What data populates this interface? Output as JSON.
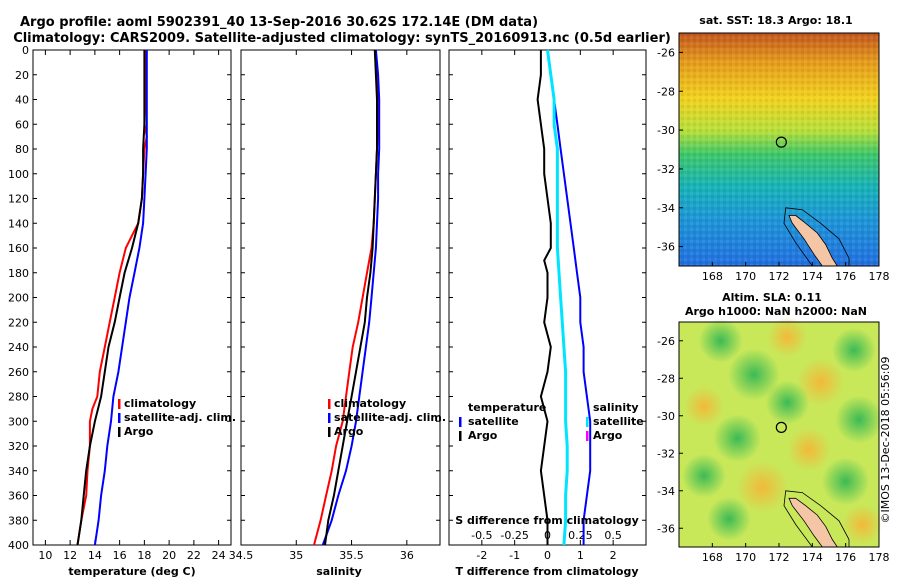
{
  "title": {
    "line1": "Argo profile: aoml 5902391_40 13-Sep-2016 30.62S 172.14E (DM data)",
    "line2": "Climatology: CARS2009. Satellite-adjusted climatology: synTS_20160913.nc (0.5d earlier)"
  },
  "colors": {
    "argo": "#000000",
    "climatology": "#ff0000",
    "satellite": "#0000ff",
    "s_diff": "#00e5ff",
    "s_argo_marker": "#ff00ff",
    "land": "#f5c6a6"
  },
  "depth_axis": {
    "ylim": [
      0,
      400
    ],
    "ticks": [
      "0",
      "20",
      "40",
      "60",
      "80",
      "100",
      "120",
      "140",
      "160",
      "180",
      "200",
      "220",
      "240",
      "260",
      "280",
      "300",
      "320",
      "340",
      "360",
      "380",
      "400"
    ]
  },
  "chart_data": [
    {
      "type": "line",
      "id": "temperature",
      "xlabel": "temperature (deg C)",
      "xlim": [
        9,
        25
      ],
      "xticks": [
        10,
        12,
        14,
        16,
        18,
        20,
        22,
        24
      ],
      "xtick_labels": [
        "10",
        "12",
        "14",
        "16",
        "18",
        "20",
        "22",
        "24"
      ],
      "series": [
        {
          "name": "climatology",
          "color": "#ff0000",
          "depth": [
            0,
            20,
            40,
            60,
            70,
            80,
            100,
            120,
            140,
            150,
            160,
            180,
            200,
            220,
            240,
            260,
            280,
            290,
            300,
            320,
            340,
            360,
            380,
            400
          ],
          "values": [
            18.1,
            18.1,
            18.1,
            18.0,
            18.2,
            18.0,
            17.9,
            17.8,
            17.5,
            17.0,
            16.5,
            16.0,
            15.6,
            15.2,
            14.8,
            14.4,
            14.2,
            13.8,
            13.6,
            13.6,
            13.4,
            13.3,
            12.9,
            12.6
          ]
        },
        {
          "name": "satellite-adj. clim.",
          "color": "#0000ff",
          "depth": [
            0,
            20,
            40,
            60,
            80,
            100,
            120,
            140,
            160,
            180,
            200,
            220,
            240,
            260,
            280,
            300,
            320,
            340,
            360,
            380,
            400
          ],
          "values": [
            18.2,
            18.2,
            18.2,
            18.2,
            18.2,
            18.1,
            18.0,
            17.9,
            17.6,
            17.2,
            16.8,
            16.5,
            16.2,
            15.9,
            15.5,
            15.3,
            15.0,
            14.8,
            14.5,
            14.3,
            14.0
          ]
        },
        {
          "name": "Argo",
          "color": "#000000",
          "depth": [
            0,
            20,
            40,
            60,
            80,
            100,
            120,
            140,
            160,
            180,
            200,
            220,
            240,
            260,
            280,
            300,
            320,
            340,
            360,
            380,
            400
          ],
          "values": [
            18.0,
            18.0,
            18.0,
            18.0,
            17.9,
            17.9,
            17.8,
            17.5,
            17.0,
            16.4,
            16.0,
            15.6,
            15.1,
            14.8,
            14.5,
            14.0,
            13.6,
            13.3,
            13.1,
            12.9,
            12.6
          ]
        }
      ],
      "legend": [
        "climatology",
        "satellite-adj. clim.",
        "Argo"
      ]
    },
    {
      "type": "line",
      "id": "salinity",
      "xlabel": "salinity",
      "xlim": [
        34.5,
        36.3
      ],
      "xticks": [
        34.5,
        35,
        35.5,
        36
      ],
      "xtick_labels": [
        "34.5",
        "35",
        "35.5",
        "36"
      ],
      "series": [
        {
          "name": "climatology",
          "color": "#ff0000",
          "depth": [
            0,
            20,
            40,
            60,
            80,
            100,
            120,
            140,
            160,
            180,
            200,
            220,
            240,
            260,
            280,
            300,
            320,
            340,
            360,
            380,
            400
          ],
          "values": [
            35.71,
            35.73,
            35.74,
            35.74,
            35.73,
            35.72,
            35.71,
            35.7,
            35.68,
            35.64,
            35.6,
            35.56,
            35.51,
            35.48,
            35.45,
            35.42,
            35.36,
            35.32,
            35.27,
            35.22,
            35.16
          ]
        },
        {
          "name": "satellite-adj. clim.",
          "color": "#0000ff",
          "depth": [
            0,
            20,
            40,
            60,
            80,
            100,
            120,
            140,
            160,
            180,
            200,
            220,
            240,
            260,
            280,
            300,
            320,
            340,
            360,
            380,
            400
          ],
          "values": [
            35.72,
            35.74,
            35.75,
            35.75,
            35.75,
            35.74,
            35.74,
            35.73,
            35.72,
            35.7,
            35.68,
            35.66,
            35.63,
            35.6,
            35.57,
            35.54,
            35.5,
            35.45,
            35.38,
            35.32,
            35.24
          ]
        },
        {
          "name": "Argo",
          "color": "#000000",
          "depth": [
            0,
            20,
            40,
            60,
            80,
            100,
            120,
            140,
            160,
            180,
            200,
            220,
            240,
            260,
            280,
            300,
            320,
            340,
            360,
            380,
            400
          ],
          "values": [
            35.71,
            35.72,
            35.73,
            35.73,
            35.73,
            35.72,
            35.71,
            35.7,
            35.69,
            35.67,
            35.64,
            35.62,
            35.58,
            35.54,
            35.5,
            35.46,
            35.42,
            35.38,
            35.34,
            35.29,
            35.26
          ]
        }
      ],
      "legend": [
        "climatology",
        "satellite-adj. clim.",
        "Argo"
      ]
    },
    {
      "type": "line",
      "id": "difference",
      "xlabel": "T difference from climatology",
      "top_xlabel": "S difference from climatology",
      "xlim": [
        -3,
        3
      ],
      "xticks": [
        -2,
        -1,
        0,
        1,
        2
      ],
      "xtick_labels": [
        "-2",
        "-1",
        "0",
        "1",
        "2"
      ],
      "top_xticks": [
        -2,
        -1,
        0,
        1,
        2
      ],
      "top_xtick_labels": [
        "-0.5",
        "-0.25",
        "0",
        "0.25",
        "0.5"
      ],
      "series": [
        {
          "name": "temperature satellite",
          "color": "#0000ff",
          "depth": [
            0,
            20,
            40,
            60,
            80,
            100,
            120,
            140,
            160,
            180,
            200,
            220,
            240,
            260,
            280,
            300,
            320,
            340,
            360,
            380,
            400
          ],
          "values": [
            0.0,
            0.1,
            0.2,
            0.3,
            0.4,
            0.5,
            0.6,
            0.7,
            0.8,
            0.9,
            1.0,
            1.0,
            1.1,
            1.1,
            1.2,
            1.3,
            1.3,
            1.3,
            1.2,
            1.1,
            1.1
          ]
        },
        {
          "name": "temperature Argo",
          "color": "#000000",
          "depth": [
            0,
            20,
            40,
            60,
            80,
            100,
            120,
            140,
            160,
            170,
            180,
            200,
            220,
            240,
            260,
            280,
            300,
            320,
            340,
            360,
            380,
            400
          ],
          "values": [
            -0.2,
            -0.2,
            -0.3,
            -0.2,
            -0.1,
            -0.1,
            0.0,
            0.1,
            0.1,
            -0.1,
            0.0,
            0.0,
            -0.1,
            0.1,
            0.0,
            -0.2,
            0.0,
            -0.1,
            -0.2,
            -0.1,
            0.0,
            0.0
          ]
        },
        {
          "name": "salinity satellite",
          "color": "#00e5ff",
          "depth": [
            0,
            20,
            40,
            60,
            80,
            100,
            120,
            140,
            160,
            180,
            200,
            220,
            240,
            260,
            280,
            300,
            320,
            340,
            360,
            380,
            400
          ],
          "values": [
            0.0,
            0.1,
            0.2,
            0.2,
            0.3,
            0.3,
            0.3,
            0.3,
            0.3,
            0.35,
            0.4,
            0.45,
            0.5,
            0.55,
            0.55,
            0.55,
            0.6,
            0.6,
            0.55,
            0.55,
            0.5
          ]
        }
      ],
      "legend_left_title": "temperature",
      "legend_right_title": "salinity",
      "legend_left": [
        "satellite",
        "Argo"
      ],
      "legend_right": [
        "satellite",
        "Argo"
      ]
    }
  ],
  "maps": [
    {
      "title": "sat. SST: 18.3 Argo: 18.1",
      "xlim": [
        166,
        178
      ],
      "ylim": [
        -37,
        -25
      ],
      "xticks": [
        168,
        170,
        172,
        174,
        176,
        178
      ],
      "yticks": [
        -26,
        -28,
        -30,
        -32,
        -34,
        -36
      ],
      "float_position": [
        172.14,
        -30.62
      ]
    },
    {
      "title_line1": "Altim. SLA: 0.11",
      "title_line2": "Argo h1000: NaN h2000: NaN",
      "xlim": [
        166,
        178
      ],
      "ylim": [
        -37,
        -25
      ],
      "xticks": [
        168,
        170,
        172,
        174,
        176,
        178
      ],
      "yticks": [
        -26,
        -28,
        -30,
        -32,
        -34,
        -36
      ],
      "float_position": [
        172.14,
        -30.62
      ]
    }
  ],
  "credit": "©IMOS 13-Dec-2018 05:56:09"
}
